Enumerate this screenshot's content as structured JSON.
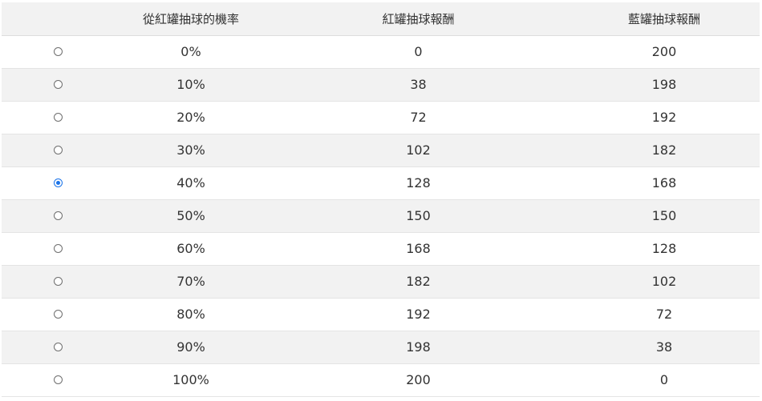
{
  "table": {
    "headers": {
      "radio": "",
      "probability": "從紅罐抽球的機率",
      "red_reward": "紅罐抽球報酬",
      "blue_reward": "藍罐抽球報酬"
    },
    "selected_index": 4,
    "rows": [
      {
        "probability": "0%",
        "red_reward": "0",
        "blue_reward": "200"
      },
      {
        "probability": "10%",
        "red_reward": "38",
        "blue_reward": "198"
      },
      {
        "probability": "20%",
        "red_reward": "72",
        "blue_reward": "192"
      },
      {
        "probability": "30%",
        "red_reward": "102",
        "blue_reward": "182"
      },
      {
        "probability": "40%",
        "red_reward": "128",
        "blue_reward": "168"
      },
      {
        "probability": "50%",
        "red_reward": "150",
        "blue_reward": "150"
      },
      {
        "probability": "60%",
        "red_reward": "168",
        "blue_reward": "128"
      },
      {
        "probability": "70%",
        "red_reward": "182",
        "blue_reward": "102"
      },
      {
        "probability": "80%",
        "red_reward": "192",
        "blue_reward": "72"
      },
      {
        "probability": "90%",
        "red_reward": "198",
        "blue_reward": "38"
      },
      {
        "probability": "100%",
        "red_reward": "200",
        "blue_reward": "0"
      }
    ]
  },
  "colors": {
    "header_bg": "#f2f2f2",
    "stripe_bg": "#f2f2f2",
    "radio_selected": "#1a73e8"
  }
}
